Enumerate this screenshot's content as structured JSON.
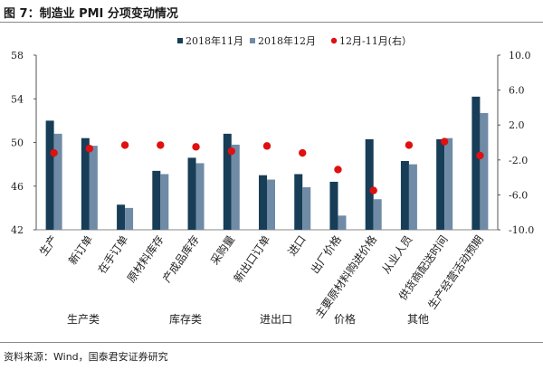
{
  "title": "图 7：制造业 PMI 分项变动情况",
  "source": "资料来源：Wind，国泰君安证券研究",
  "chart_data": {
    "type": "bar",
    "categories": [
      "生产",
      "新订单",
      "在手订单",
      "原材料库存",
      "产成品库存",
      "采购量",
      "新出口订单",
      "进口",
      "出厂价格",
      "主要原材料购进价格",
      "从业人员",
      "供货商配送时间",
      "生产经营活动预期"
    ],
    "groups": [
      {
        "label": "生产类",
        "from": 0,
        "to": 2
      },
      {
        "label": "库存类",
        "from": 3,
        "to": 5
      },
      {
        "label": "进出口",
        "from": 6,
        "to": 7
      },
      {
        "label": "价格",
        "from": 8,
        "to": 9
      },
      {
        "label": "其他",
        "from": 10,
        "to": 12
      }
    ],
    "series": [
      {
        "name": "2018年11月",
        "type": "bar",
        "axis": "left",
        "color": "#173d57",
        "values": [
          52.0,
          50.4,
          44.3,
          47.4,
          48.6,
          50.8,
          47.0,
          47.1,
          46.4,
          50.3,
          48.3,
          50.3,
          54.2
        ]
      },
      {
        "name": "2018年12月",
        "type": "bar",
        "axis": "left",
        "color": "#6f8ba6",
        "values": [
          50.8,
          49.7,
          44.0,
          47.1,
          48.1,
          49.8,
          46.6,
          45.9,
          43.3,
          44.8,
          48.0,
          50.4,
          52.7
        ]
      },
      {
        "name": "12月-11月(右）",
        "type": "scatter",
        "axis": "right",
        "color": "#e01010",
        "values": [
          -1.2,
          -0.7,
          -0.3,
          -0.3,
          -0.5,
          -1.0,
          -0.4,
          -1.2,
          -3.1,
          -5.5,
          -0.3,
          0.1,
          -1.5
        ]
      }
    ],
    "left_axis": {
      "min": 42,
      "max": 58,
      "ticks": [
        "42",
        "46",
        "50",
        "54",
        "58"
      ]
    },
    "right_axis": {
      "min": -10,
      "max": 10,
      "ticks": [
        "-10.0",
        "-6.0",
        "-2.0",
        "2.0",
        "6.0",
        "10.0"
      ]
    },
    "legend_position": "top-right",
    "grid": false
  }
}
